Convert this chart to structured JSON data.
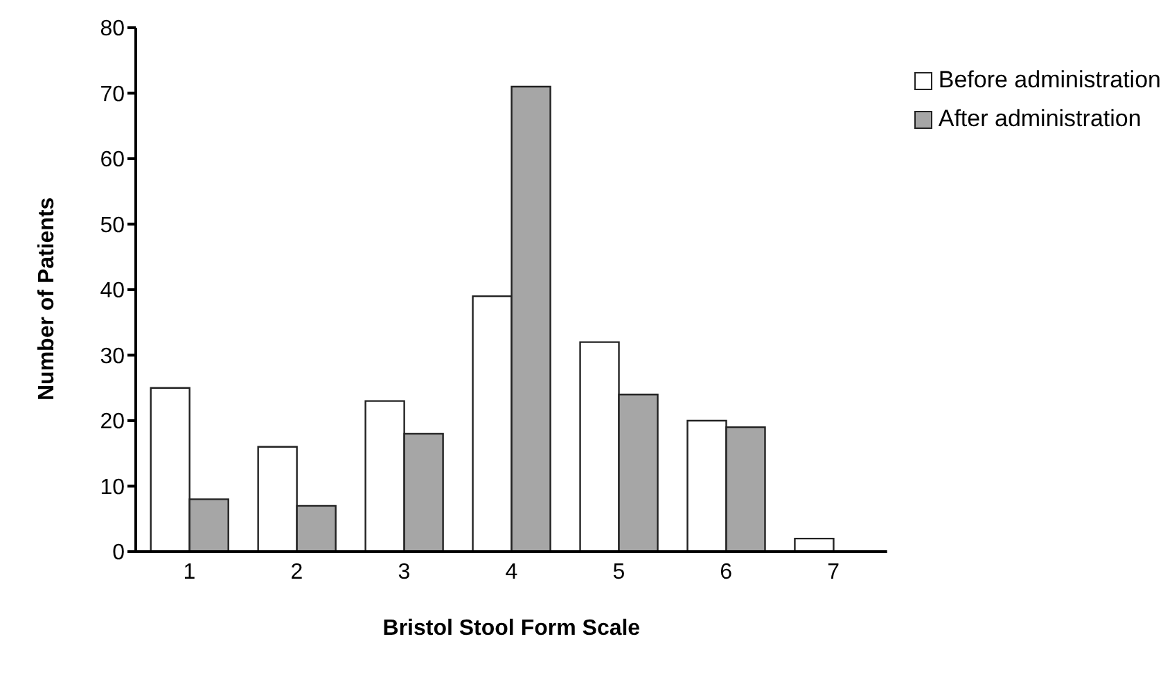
{
  "chart_data": {
    "type": "bar",
    "xlabel": "Bristol Stool Form Scale",
    "ylabel": "Number of Patients",
    "categories": [
      "1",
      "2",
      "3",
      "4",
      "5",
      "6",
      "7"
    ],
    "series": [
      {
        "name": "Before administration",
        "color": "#ffffff",
        "values": [
          25,
          16,
          23,
          39,
          32,
          20,
          2
        ]
      },
      {
        "name": "After administration",
        "color": "#a6a6a6",
        "values": [
          8,
          7,
          18,
          71,
          24,
          19,
          0
        ]
      }
    ],
    "ylim": [
      0,
      80
    ],
    "yticks": [
      0,
      10,
      20,
      30,
      40,
      50,
      60,
      70,
      80
    ],
    "grid": false,
    "legend": "top right"
  }
}
